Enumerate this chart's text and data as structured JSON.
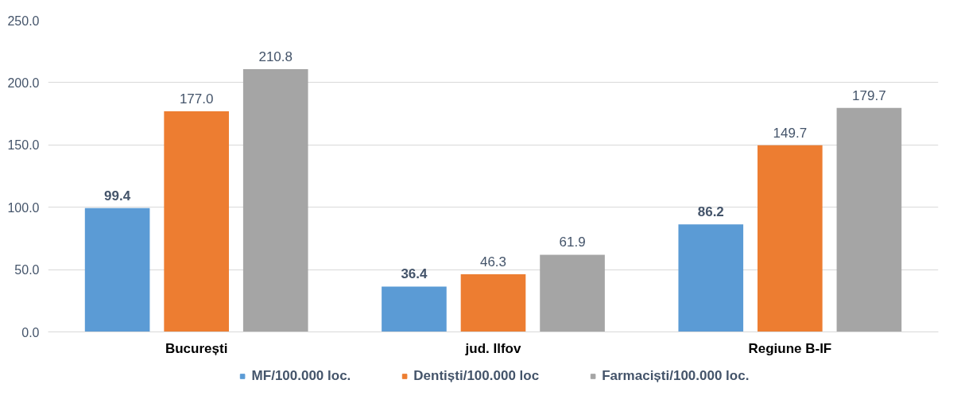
{
  "chart_data": {
    "type": "bar",
    "categories": [
      "București",
      "jud. Ilfov",
      "Regiune B-IF"
    ],
    "series": [
      {
        "name": "MF/100.000 loc.",
        "color": "#5b9bd5",
        "values": [
          99.4,
          36.4,
          86.2
        ],
        "value_labels": [
          "99.4",
          "36.4",
          "86.2"
        ]
      },
      {
        "name": "Dentiști/100.000 loc",
        "color": "#ed7d31",
        "values": [
          177.0,
          46.3,
          149.7
        ],
        "value_labels": [
          "177.0",
          "46.3",
          "149.7"
        ]
      },
      {
        "name": "Farmaciști/100.000 loc.",
        "color": "#a5a5a5",
        "values": [
          210.8,
          61.9,
          179.7
        ],
        "value_labels": [
          "210.8",
          "61.9",
          "179.7"
        ]
      }
    ],
    "ylim": [
      0,
      250
    ],
    "yticks": [
      {
        "value": 0,
        "label": "0.0"
      },
      {
        "value": 50,
        "label": "50.0"
      },
      {
        "value": 100,
        "label": "100.0"
      },
      {
        "value": 150,
        "label": "150.0"
      },
      {
        "value": 200,
        "label": "200.0"
      },
      {
        "value": 250,
        "label": "250.0"
      }
    ],
    "grid": "y",
    "legend": "bottom"
  }
}
